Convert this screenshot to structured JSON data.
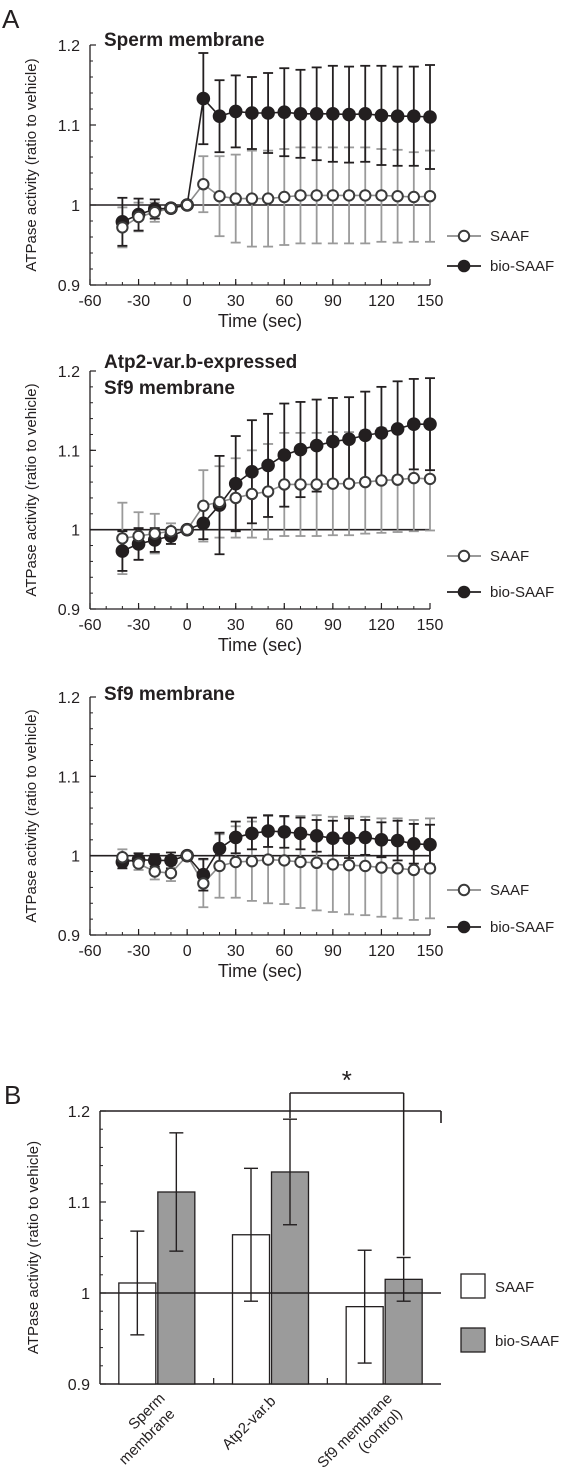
{
  "panel_labels": {
    "a": "A",
    "b": "B"
  },
  "chart_data": [
    {
      "type": "line",
      "title": "Sperm membrane",
      "xlabel": "Time (sec)",
      "ylabel": "ATPase activity (ratio to vehicle)",
      "xlim": [
        -60,
        150
      ],
      "ylim": [
        0.9,
        1.2
      ],
      "xticks": [
        "-60",
        "-30",
        "0",
        "30",
        "60",
        "90",
        "120",
        "150"
      ],
      "yticks": [
        "0.9",
        "1",
        "1.1",
        "1.2"
      ],
      "reference_y": 1,
      "legend_position": "right",
      "series": [
        {
          "name": "SAAF",
          "marker": "open-circle",
          "color": "#8c8c8c",
          "x": [
            -40,
            -30,
            -20,
            -10,
            0,
            10,
            20,
            30,
            40,
            50,
            60,
            70,
            80,
            90,
            100,
            110,
            120,
            130,
            140,
            150
          ],
          "y": [
            0.972,
            0.985,
            0.991,
            0.996,
            1.0,
            1.026,
            1.011,
            1.008,
            1.008,
            1.008,
            1.01,
            1.012,
            1.012,
            1.012,
            1.012,
            1.012,
            1.012,
            1.011,
            1.01,
            1.011
          ],
          "err": [
            0.025,
            0.018,
            0.012,
            0.005,
            0.003,
            0.035,
            0.05,
            0.055,
            0.06,
            0.06,
            0.06,
            0.06,
            0.06,
            0.06,
            0.06,
            0.06,
            0.058,
            0.058,
            0.056,
            0.057
          ]
        },
        {
          "name": "bio-SAAF",
          "marker": "filled-circle",
          "color": "#231f20",
          "x": [
            -40,
            -30,
            -20,
            -10,
            0,
            10,
            20,
            30,
            40,
            50,
            60,
            70,
            80,
            90,
            100,
            110,
            120,
            130,
            140,
            150
          ],
          "y": [
            0.979,
            0.988,
            0.995,
            0.996,
            1.0,
            1.133,
            1.111,
            1.117,
            1.115,
            1.115,
            1.116,
            1.114,
            1.114,
            1.114,
            1.113,
            1.114,
            1.112,
            1.111,
            1.111,
            1.11
          ],
          "err": [
            0.03,
            0.02,
            0.012,
            0.005,
            0.003,
            0.057,
            0.045,
            0.045,
            0.045,
            0.05,
            0.055,
            0.055,
            0.058,
            0.06,
            0.06,
            0.06,
            0.062,
            0.062,
            0.062,
            0.065
          ]
        }
      ]
    },
    {
      "type": "line",
      "title": "Atp2-var.b-expressed\nSf9 membrane",
      "xlabel": "Time (sec)",
      "ylabel": "ATPase activity (ratio to vehicle)",
      "xlim": [
        -60,
        150
      ],
      "ylim": [
        0.9,
        1.2
      ],
      "xticks": [
        "-60",
        "-30",
        "0",
        "30",
        "60",
        "90",
        "120",
        "150"
      ],
      "yticks": [
        "0.9",
        "1",
        "1.1",
        "1.2"
      ],
      "reference_y": 1,
      "legend_position": "right",
      "series": [
        {
          "name": "SAAF",
          "marker": "open-circle",
          "color": "#8c8c8c",
          "x": [
            -40,
            -30,
            -20,
            -10,
            0,
            10,
            20,
            30,
            40,
            50,
            60,
            70,
            80,
            90,
            100,
            110,
            120,
            130,
            140,
            150
          ],
          "y": [
            0.989,
            0.992,
            0.995,
            0.998,
            1.0,
            1.03,
            1.035,
            1.04,
            1.045,
            1.048,
            1.057,
            1.057,
            1.057,
            1.058,
            1.058,
            1.06,
            1.062,
            1.063,
            1.065,
            1.064
          ],
          "err": [
            0.045,
            0.03,
            0.025,
            0.01,
            0.003,
            0.045,
            0.045,
            0.05,
            0.055,
            0.06,
            0.065,
            0.065,
            0.065,
            0.065,
            0.065,
            0.065,
            0.066,
            0.066,
            0.067,
            0.065
          ]
        },
        {
          "name": "bio-SAAF",
          "marker": "filled-circle",
          "color": "#231f20",
          "x": [
            -40,
            -30,
            -20,
            -10,
            0,
            10,
            20,
            30,
            40,
            50,
            60,
            70,
            80,
            90,
            100,
            110,
            120,
            130,
            140,
            150
          ],
          "y": [
            0.973,
            0.982,
            0.987,
            0.992,
            1.0,
            1.008,
            1.031,
            1.058,
            1.073,
            1.081,
            1.094,
            1.101,
            1.106,
            1.111,
            1.114,
            1.119,
            1.122,
            1.127,
            1.133,
            1.133
          ],
          "err": [
            0.025,
            0.02,
            0.015,
            0.01,
            0.003,
            0.02,
            0.062,
            0.06,
            0.065,
            0.065,
            0.065,
            0.06,
            0.058,
            0.055,
            0.053,
            0.055,
            0.058,
            0.06,
            0.057,
            0.058
          ]
        }
      ]
    },
    {
      "type": "line",
      "title": "Sf9 membrane",
      "xlabel": "Time (sec)",
      "ylabel": "ATPase activity (ratio to vehicle)",
      "xlim": [
        -60,
        150
      ],
      "ylim": [
        0.9,
        1.2
      ],
      "xticks": [
        "-60",
        "-30",
        "0",
        "30",
        "60",
        "90",
        "120",
        "150"
      ],
      "yticks": [
        "0.9",
        "1",
        "1.1",
        "1.2"
      ],
      "reference_y": 1,
      "legend_position": "right",
      "series": [
        {
          "name": "SAAF",
          "marker": "open-circle",
          "color": "#8c8c8c",
          "x": [
            -40,
            -30,
            -20,
            -10,
            0,
            10,
            20,
            30,
            40,
            50,
            60,
            70,
            80,
            90,
            100,
            110,
            120,
            130,
            140,
            150
          ],
          "y": [
            0.998,
            0.99,
            0.98,
            0.978,
            1.0,
            0.965,
            0.987,
            0.992,
            0.993,
            0.995,
            0.994,
            0.992,
            0.991,
            0.989,
            0.988,
            0.987,
            0.985,
            0.984,
            0.982,
            0.984
          ],
          "err": [
            0.01,
            0.008,
            0.01,
            0.01,
            0.003,
            0.03,
            0.04,
            0.045,
            0.05,
            0.055,
            0.055,
            0.058,
            0.06,
            0.06,
            0.062,
            0.062,
            0.062,
            0.063,
            0.063,
            0.063
          ]
        },
        {
          "name": "bio-SAAF",
          "marker": "filled-circle",
          "color": "#231f20",
          "x": [
            -40,
            -30,
            -20,
            -10,
            0,
            10,
            20,
            30,
            40,
            50,
            60,
            70,
            80,
            90,
            100,
            110,
            120,
            130,
            140,
            150
          ],
          "y": [
            0.992,
            0.995,
            0.994,
            0.994,
            1.0,
            0.976,
            1.009,
            1.023,
            1.028,
            1.031,
            1.03,
            1.028,
            1.025,
            1.022,
            1.022,
            1.023,
            1.02,
            1.019,
            1.015,
            1.014
          ],
          "err": [
            0.008,
            0.008,
            0.008,
            0.01,
            0.003,
            0.02,
            0.02,
            0.02,
            0.02,
            0.02,
            0.02,
            0.02,
            0.02,
            0.022,
            0.025,
            0.022,
            0.022,
            0.025,
            0.025,
            0.025
          ]
        }
      ]
    },
    {
      "type": "bar",
      "ylabel": "ATPase activity (ratio to vehicle)",
      "ylim": [
        0.9,
        1.2
      ],
      "yticks": [
        "0.9",
        "1",
        "1.1",
        "1.2"
      ],
      "reference_y": 1,
      "categories": [
        "Sperm\nmembrane",
        "Atp2-var.b",
        "Sf9 membrane\n(control)"
      ],
      "legend_position": "right",
      "significance": {
        "label": "*",
        "between": [
          "Atp2-var.b bio-SAAF",
          "Sf9 membrane (control) bio-SAAF"
        ]
      },
      "series": [
        {
          "name": "SAAF",
          "fill": "#ffffff",
          "values": [
            1.011,
            1.064,
            0.985
          ],
          "err": [
            0.057,
            0.073,
            0.062
          ]
        },
        {
          "name": "bio-SAAF",
          "fill": "#9b9b9b",
          "values": [
            1.111,
            1.133,
            1.015
          ],
          "err": [
            0.065,
            0.058,
            0.024
          ]
        }
      ]
    }
  ]
}
